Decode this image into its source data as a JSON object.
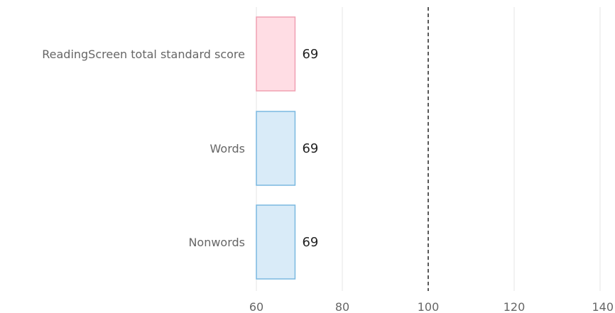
{
  "chart_data": {
    "type": "bar",
    "orientation": "horizontal",
    "categories": [
      "ReadingScreen total standard score",
      "Words",
      "Nonwords"
    ],
    "values": [
      69,
      69,
      69
    ],
    "data_labels": [
      "69",
      "69",
      "69"
    ],
    "bar_fill_colors": [
      "#ffdde4",
      "#d9ebf8",
      "#d9ebf8"
    ],
    "bar_stroke_colors": [
      "#f0a0b2",
      "#7ab8e0",
      "#7ab8e0"
    ],
    "xlim": [
      60,
      140
    ],
    "x_ticks": [
      60,
      80,
      100,
      120,
      140
    ],
    "x_tick_labels": [
      "60",
      "80",
      "100",
      "120",
      "140"
    ],
    "reference_line": {
      "value": 100,
      "style": "dashed",
      "color": "#000000"
    },
    "grid": "vertical",
    "grid_color": "#e6e6e6",
    "legend": "none"
  }
}
